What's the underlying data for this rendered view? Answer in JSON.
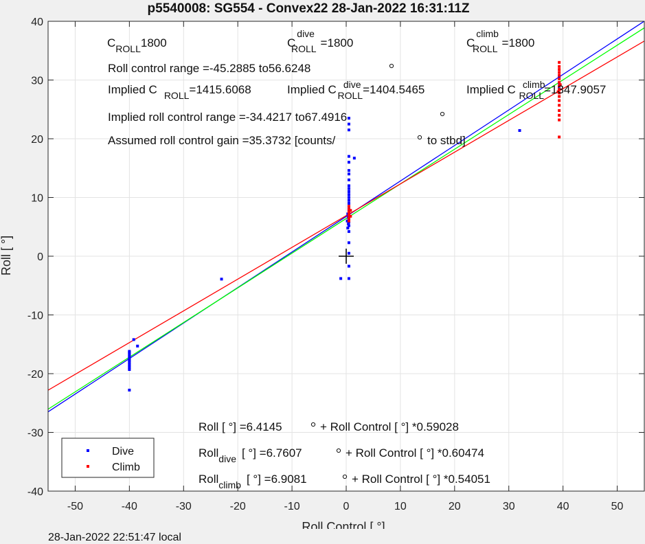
{
  "chart_data": {
    "type": "scatter",
    "title": "p5540008: SG554 - Convex22 28-Jan-2022 16:31:11Z",
    "xlabel": "Roll Control [   °]",
    "ylabel": "Roll [  °]",
    "xlim": [
      -55,
      55
    ],
    "ylim": [
      -40,
      40
    ],
    "xticks": [
      -50,
      -40,
      -30,
      -20,
      -10,
      0,
      10,
      20,
      30,
      40,
      50
    ],
    "yticks": [
      -40,
      -30,
      -20,
      -10,
      0,
      10,
      20,
      30,
      40
    ],
    "grid": true,
    "legend_position": "bottom-left",
    "legend": [
      {
        "name": "Dive",
        "color": "#0000ff"
      },
      {
        "name": "Climb",
        "color": "#ff0000"
      }
    ],
    "series": [
      {
        "name": "Dive",
        "color": "#0000ff",
        "points": [
          [
            -40,
            -22.8
          ],
          [
            -40,
            -19.3
          ],
          [
            -40,
            -19.0
          ],
          [
            -40,
            -18.7
          ],
          [
            -40,
            -18.4
          ],
          [
            -40,
            -18.1
          ],
          [
            -40,
            -17.8
          ],
          [
            -40,
            -17.6
          ],
          [
            -40,
            -17.3
          ],
          [
            -40,
            -17.0
          ],
          [
            -40,
            -16.7
          ],
          [
            -40,
            -16.4
          ],
          [
            -40,
            -16.2
          ],
          [
            -39.2,
            -14.2
          ],
          [
            -38.5,
            -15.3
          ],
          [
            -23,
            -3.9
          ],
          [
            -1,
            -3.8
          ],
          [
            0.5,
            -3.8
          ],
          [
            0.5,
            -1.7
          ],
          [
            0.5,
            0.5
          ],
          [
            0.5,
            2.3
          ],
          [
            0.5,
            4.2
          ],
          [
            0.3,
            4.8
          ],
          [
            0.5,
            5.2
          ],
          [
            0.4,
            5.5
          ],
          [
            0.5,
            5.8
          ],
          [
            0.2,
            6.0
          ],
          [
            0.5,
            6.3
          ],
          [
            0.4,
            6.6
          ],
          [
            0.5,
            6.9
          ],
          [
            0.3,
            7.2
          ],
          [
            0.5,
            7.6
          ],
          [
            0.5,
            8.0
          ],
          [
            0.5,
            8.5
          ],
          [
            0.5,
            9.0
          ],
          [
            0.5,
            9.5
          ],
          [
            0.5,
            10.0
          ],
          [
            0.5,
            10.5
          ],
          [
            0.5,
            11.0
          ],
          [
            0.5,
            11.5
          ],
          [
            0.5,
            12.0
          ],
          [
            0.5,
            13.0
          ],
          [
            0.5,
            14.0
          ],
          [
            0.5,
            14.6
          ],
          [
            0.5,
            16.0
          ],
          [
            0.5,
            17.0
          ],
          [
            0.5,
            21.5
          ],
          [
            0.5,
            22.5
          ],
          [
            0.5,
            23.5
          ],
          [
            1.5,
            16.7
          ],
          [
            32,
            21.4
          ],
          [
            39.3,
            28.5
          ],
          [
            39.3,
            29.5
          ],
          [
            39.3,
            30.5
          ]
        ]
      },
      {
        "name": "Climb",
        "color": "#ff0000",
        "points": [
          [
            0.5,
            6.0
          ],
          [
            0.5,
            6.5
          ],
          [
            0.5,
            7.0
          ],
          [
            0.5,
            7.5
          ],
          [
            0.5,
            8.0
          ],
          [
            0.5,
            8.5
          ],
          [
            0.8,
            6.8
          ],
          [
            0.8,
            7.8
          ],
          [
            39.3,
            20.3
          ],
          [
            39.3,
            23.2
          ],
          [
            39.3,
            24.0
          ],
          [
            39.3,
            24.8
          ],
          [
            39.3,
            25.7
          ],
          [
            39.3,
            26.5
          ],
          [
            39.3,
            27.2
          ],
          [
            39.3,
            27.8
          ],
          [
            39.3,
            28.4
          ],
          [
            39.3,
            29.0
          ],
          [
            39.3,
            29.6
          ],
          [
            39.3,
            30.2
          ],
          [
            39.3,
            30.8
          ],
          [
            39.3,
            31.3
          ],
          [
            39.3,
            31.8
          ],
          [
            39.3,
            32.3
          ],
          [
            39.3,
            33.0
          ],
          [
            39.1,
            28.0
          ],
          [
            39.5,
            29.2
          ]
        ]
      }
    ],
    "fit_lines": [
      {
        "name": "fit_all",
        "color": "#00ff00",
        "intercept": 6.4145,
        "slope": 0.59028
      },
      {
        "name": "fit_dive",
        "color": "#0000ff",
        "intercept": 6.7607,
        "slope": 0.60474
      },
      {
        "name": "fit_climb",
        "color": "#ff0000",
        "intercept": 6.9081,
        "slope": 0.54051
      }
    ],
    "origin_marker": [
      0,
      0
    ],
    "annotations": {
      "c_roll": "1800",
      "c_roll_dive": "1800",
      "c_roll_climb": "1800",
      "roll_control_range": "Roll control range =-45.2885 to56.6248",
      "implied_c_roll": "=1415.6068",
      "implied_c_roll_dive": "=1404.5465",
      "implied_c_roll_climb": "=1347.9057",
      "implied_range": "Implied roll control range =-34.4217 to67.4916",
      "gain": "Assumed roll control gain =35.3732 [counts/",
      "gain_suffix": "to stbd]",
      "eq_all_left": "Roll [  °] =6.4145",
      "eq_all_right": "+ Roll Control [     °] *0.59028",
      "eq_dive_val": "[  °] =6.7607",
      "eq_dive_right": "+ Roll Control [     °] *0.60474",
      "eq_climb_val": "[  °] =6.9081",
      "eq_climb_right": "+ Roll Control [     °] *0.54051"
    }
  },
  "footer": {
    "local_time": "28-Jan-2022 22:51:47 local"
  }
}
